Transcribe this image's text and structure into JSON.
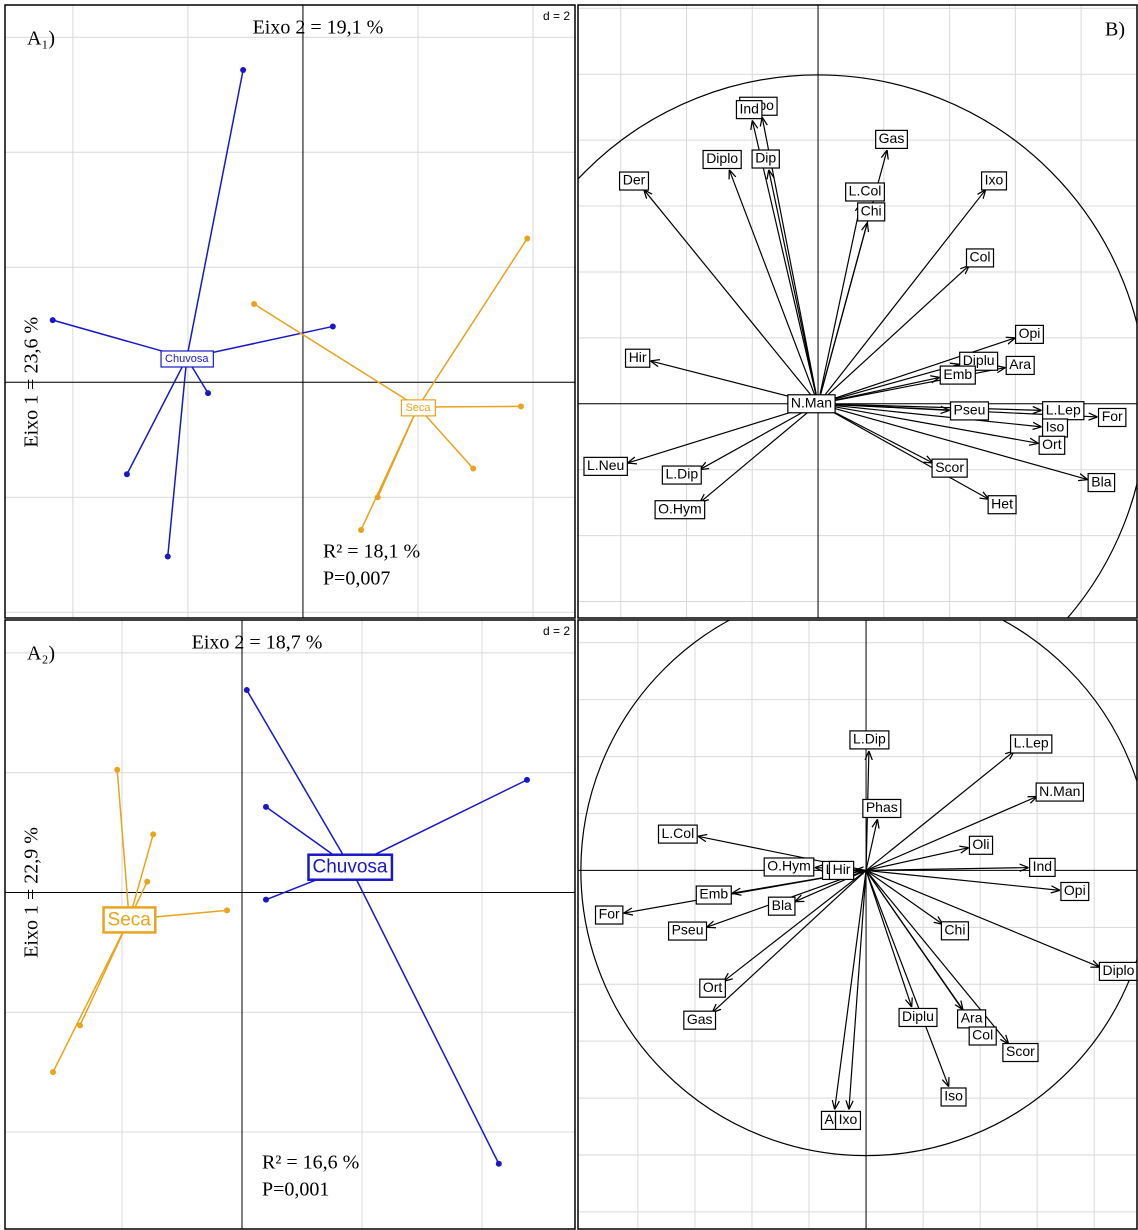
{
  "chart_data": [
    {
      "type": "scatter",
      "panel_label": "A₁)",
      "x_axis_label": "Eixo 2 = 19,1 %",
      "y_axis_label": "Eixo 1 = 23,6 %",
      "grid_label": "d = 2",
      "annotations": [
        "R² = 18,1 %",
        "P=0,007"
      ],
      "xlim": [
        -5.18,
        4.73
      ],
      "ylim": [
        -4.1,
        6.56
      ],
      "xticks": [
        -4,
        -2,
        0,
        2,
        4
      ],
      "yticks": [
        -4,
        -2,
        0,
        2,
        4,
        6
      ],
      "groups": [
        {
          "name": "Chuvosa",
          "color": "#1818c8",
          "center_x": -2.02,
          "center_y": 0.42,
          "x": [
            -1.04,
            -4.35,
            0.52,
            -1.65,
            -3.06,
            -2.35
          ],
          "y": [
            5.43,
            1.08,
            0.97,
            -0.19,
            -1.6,
            -3.03
          ]
        },
        {
          "name": "Seca",
          "color": "#e8a41c",
          "center_x": 2.0,
          "center_y": -0.43,
          "x": [
            3.9,
            -0.85,
            3.79,
            2.96,
            1.3,
            1.01
          ],
          "y": [
            2.5,
            1.36,
            -0.42,
            -1.5,
            -2.0,
            -2.57
          ]
        }
      ]
    },
    {
      "type": "correlation_circle",
      "panel_label": "B)",
      "xlim": [
        -0.73,
        0.97
      ],
      "ylim": [
        -0.65,
        1.21
      ],
      "xticks": [
        -0.6,
        -0.4,
        -0.2,
        0,
        0.2,
        0.4,
        0.6,
        0.8
      ],
      "yticks": [
        -0.6,
        -0.4,
        -0.2,
        0,
        0.2,
        0.4,
        0.6,
        0.8,
        1.0,
        1.2
      ],
      "labels": [
        "Lopo",
        "Ind",
        "Diplo",
        "Dip",
        "Der",
        "Gas",
        "L.Col",
        "Chi",
        "Ixo",
        "Col",
        "Opi",
        "Diplu",
        "Ara",
        "Emb",
        "Hir",
        "N.Man",
        "Pseu",
        "L.Lep",
        "For",
        "Iso",
        "Ort",
        "Scor",
        "Bla",
        "Het",
        "L.Neu",
        "L.Dip",
        "O.Hym"
      ],
      "x": [
        -0.17,
        -0.2,
        -0.27,
        -0.15,
        -0.53,
        0.21,
        0.13,
        0.15,
        0.51,
        0.46,
        0.6,
        0.43,
        0.57,
        0.37,
        -0.51,
        -0.02,
        0.4,
        0.68,
        0.85,
        0.68,
        0.67,
        0.35,
        0.82,
        0.52,
        -0.58,
        -0.36,
        -0.36
      ],
      "y": [
        0.87,
        0.86,
        0.71,
        0.71,
        0.65,
        0.77,
        0.61,
        0.55,
        0.65,
        0.42,
        0.2,
        0.12,
        0.11,
        0.08,
        0.13,
        0.0,
        -0.02,
        -0.02,
        -0.04,
        -0.07,
        -0.12,
        -0.18,
        -0.23,
        -0.29,
        -0.18,
        -0.2,
        -0.3
      ]
    },
    {
      "type": "scatter",
      "panel_label": "A₂)",
      "x_axis_label": "Eixo 2 = 18,7 %",
      "y_axis_label": "Eixo 1 = 22,9 %",
      "grid_label": "d = 2",
      "annotations": [
        "R² = 16,6 %",
        "P=0,001"
      ],
      "xlim": [
        -3.95,
        5.55
      ],
      "ylim": [
        -5.62,
        4.55
      ],
      "xticks": [
        -2,
        0,
        2,
        4
      ],
      "yticks": [
        -4,
        -2,
        0,
        2,
        4
      ],
      "groups": [
        {
          "name": "Chuvosa",
          "color": "#1818c8",
          "center_x": 1.8,
          "center_y": 0.43,
          "x": [
            0.08,
            4.75,
            0.4,
            0.4,
            4.28
          ],
          "y": [
            3.38,
            1.88,
            1.43,
            -0.12,
            -4.53
          ]
        },
        {
          "name": "Seca",
          "color": "#e8a41c",
          "center_x": -1.88,
          "center_y": -0.45,
          "x": [
            -2.08,
            -1.48,
            -1.58,
            -0.25,
            -2.7,
            -3.15
          ],
          "y": [
            2.05,
            0.97,
            0.18,
            -0.3,
            -2.22,
            -3.0
          ]
        }
      ]
    },
    {
      "type": "correlation_circle",
      "xlim": [
        -1.01,
        0.95
      ],
      "ylim": [
        -1.26,
        0.88
      ],
      "xticks": [
        -0.8,
        -0.6,
        -0.4,
        -0.2,
        0,
        0.2,
        0.4,
        0.6,
        0.8
      ],
      "yticks": [
        -1.2,
        -1.0,
        -0.8,
        -0.6,
        -0.4,
        -0.2,
        0,
        0.2,
        0.4,
        0.6,
        0.8
      ],
      "labels": [
        "L.Dip",
        "Phas",
        "L.Lep",
        "N.Man",
        "Oli",
        "Ind",
        "Opi",
        "Chi",
        "Diplo",
        "Diplu",
        "Ara",
        "Col",
        "Scor",
        "Iso",
        "Au",
        "Ixo",
        "L.Col",
        "O.Hym",
        "L",
        "Hir",
        "Emb",
        "Bla",
        "For",
        "Pseu",
        "Ort",
        "Gas"
      ],
      "x": [
        0.01,
        0.04,
        0.52,
        0.6,
        0.36,
        0.57,
        0.68,
        0.27,
        0.82,
        0.16,
        0.34,
        0.38,
        0.5,
        0.29,
        -0.11,
        -0.06,
        -0.59,
        -0.18,
        -0.1,
        -0.04,
        -0.47,
        -0.25,
        -0.85,
        -0.56,
        -0.5,
        -0.54
      ],
      "y": [
        0.42,
        0.18,
        0.42,
        0.26,
        0.08,
        0.01,
        -0.07,
        -0.19,
        -0.34,
        -0.48,
        -0.49,
        -0.55,
        -0.61,
        -0.76,
        -0.84,
        -0.84,
        0.12,
        0.01,
        0.0,
        0.0,
        -0.08,
        -0.11,
        -0.15,
        -0.2,
        -0.39,
        -0.5
      ]
    }
  ]
}
